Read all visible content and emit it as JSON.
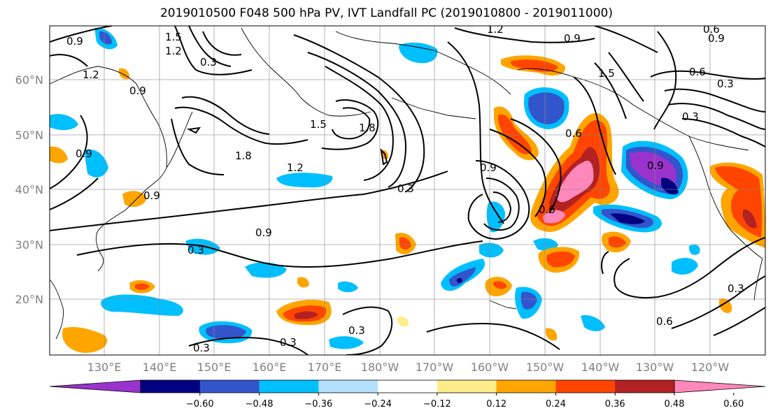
{
  "title": "2019010500 F048 500 hPa PV, IVT Landfall PC (2019010800 - 2019011000)",
  "lat_labels": [
    "60°N",
    "50°N",
    "40°N",
    "30°N",
    "20°N"
  ],
  "lon_labels": [
    "130°E",
    "140°E",
    "150°E",
    "160°E",
    "170°E",
    "180°W",
    "170°W",
    "160°W",
    "150°W",
    "140°W",
    "130°W",
    "120°W"
  ],
  "colorbar": {
    "colors": [
      "#9933cc",
      "#000080",
      "#3355cc",
      "#00bfff",
      "#b3e0ff",
      "#ffffff",
      "#ffec8b",
      "#ffa500",
      "#ff4500",
      "#b22222",
      "#ff88bb"
    ],
    "ticks": [
      "−0.60",
      "−0.48",
      "−0.36",
      "−0.24",
      "−0.12",
      "0.12",
      "0.24",
      "0.36",
      "0.48",
      "0.60"
    ]
  },
  "contour_labels": [
    "0.9",
    "0.6",
    "1.2",
    "1.5",
    "0.3",
    "1.8",
    "1.5",
    "1.8",
    "1.2",
    "0.3",
    "0.9",
    "0.3",
    "0.9",
    "1.2",
    "0.9",
    "0.6",
    "0.9",
    "1.5",
    "0.3",
    "0.6",
    "0.3",
    "0.9",
    "0.6",
    "0.3",
    "0.3",
    "0.6",
    "0.3",
    "0.3",
    "0.9",
    "1.2",
    "0.9",
    "0.9"
  ]
}
